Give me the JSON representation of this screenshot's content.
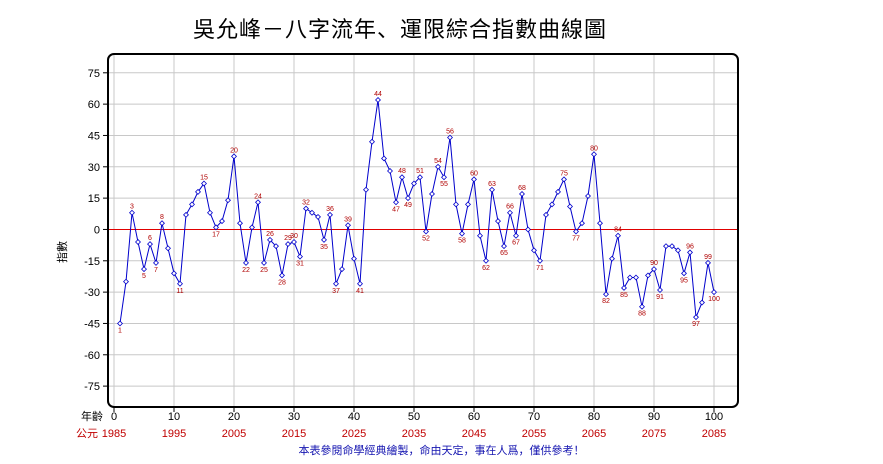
{
  "title": "吳允峰－八字流年、運限綜合指數曲線圖",
  "footer": "本表參閱命學經典繪製，命由天定，事在人爲，僅供參考！",
  "chart_data": {
    "type": "line",
    "ylabel": "指數",
    "xlabel": "年齡",
    "year_prefix": "公元",
    "xlim": [
      -1,
      104
    ],
    "ylim": [
      -85,
      84
    ],
    "x_ticks": [
      0,
      10,
      20,
      30,
      40,
      50,
      60,
      70,
      80,
      90,
      100
    ],
    "year_ticks": [
      "1985",
      "1995",
      "2005",
      "2015",
      "2025",
      "2035",
      "2045",
      "2055",
      "2065",
      "2075",
      "2085"
    ],
    "y_ticks": [
      75,
      60,
      45,
      30,
      15,
      0,
      -15,
      -30,
      -45,
      -60,
      -75
    ],
    "grid": true,
    "zero_line_color": "#e00000",
    "line_color": "#0000cc",
    "label_color": "#b00000",
    "series": [
      {
        "x": [
          1,
          2,
          3,
          4,
          5,
          6,
          7,
          8,
          9,
          10,
          11,
          12,
          13,
          14,
          15,
          16,
          17,
          18,
          19,
          20,
          21,
          22,
          23,
          24,
          25,
          26,
          27,
          28,
          29,
          30,
          31,
          32,
          33,
          34,
          35,
          36,
          37,
          38,
          39,
          40,
          41,
          42,
          43,
          44,
          45,
          46,
          47,
          48,
          49,
          50,
          51,
          52,
          53,
          54,
          55,
          56,
          57,
          58,
          59,
          60,
          61,
          62,
          63,
          64,
          65,
          66,
          67,
          68,
          69,
          70,
          71,
          72,
          73,
          74,
          75,
          76,
          77,
          78,
          79,
          80,
          81,
          82,
          83,
          84,
          85,
          86,
          87,
          88,
          89,
          90,
          91,
          92,
          93,
          94,
          95,
          96,
          97,
          98,
          99,
          100
        ],
        "y": [
          -45,
          -25,
          8,
          -6,
          -19,
          -7,
          -16,
          3,
          -9,
          -21,
          -26,
          7,
          12,
          18,
          22,
          8,
          1,
          4,
          14,
          35,
          3,
          -16,
          1,
          13,
          -16,
          -5,
          -8,
          -22,
          -7,
          -6,
          -13,
          10,
          8,
          6,
          -5,
          7,
          -26,
          -19,
          2,
          -14,
          -26,
          19,
          42,
          62,
          34,
          28,
          13,
          25,
          15,
          22,
          25,
          -1,
          17,
          30,
          25,
          44,
          12,
          -2,
          12,
          24,
          -3,
          -15,
          19,
          4,
          -8,
          8,
          -3,
          17,
          0,
          -10,
          -15,
          7,
          12,
          18,
          24,
          11,
          -1,
          3,
          16,
          36,
          3,
          -31,
          -14,
          -3,
          -28,
          -23,
          -23,
          -37,
          -22,
          -19,
          -29,
          -8,
          -8,
          -10,
          -21,
          -11,
          -42,
          -35,
          -16,
          -30
        ]
      }
    ],
    "point_labels": [
      {
        "x": 1,
        "text": "1",
        "pos": "below"
      },
      {
        "x": 3,
        "text": "3",
        "pos": "above"
      },
      {
        "x": 5,
        "text": "5",
        "pos": "below"
      },
      {
        "x": 6,
        "text": "6",
        "pos": "above"
      },
      {
        "x": 7,
        "text": "7",
        "pos": "below"
      },
      {
        "x": 8,
        "text": "8",
        "pos": "above"
      },
      {
        "x": 11,
        "text": "11",
        "pos": "below"
      },
      {
        "x": 15,
        "text": "15",
        "pos": "above"
      },
      {
        "x": 17,
        "text": "17",
        "pos": "below"
      },
      {
        "x": 20,
        "text": "20",
        "pos": "above"
      },
      {
        "x": 22,
        "text": "22",
        "pos": "below"
      },
      {
        "x": 24,
        "text": "24",
        "pos": "above"
      },
      {
        "x": 25,
        "text": "25",
        "pos": "below"
      },
      {
        "x": 26,
        "text": "26",
        "pos": "above"
      },
      {
        "x": 28,
        "text": "28",
        "pos": "below"
      },
      {
        "x": 29,
        "text": "29",
        "pos": "above"
      },
      {
        "x": 30,
        "text": "30",
        "pos": "above"
      },
      {
        "x": 31,
        "text": "31",
        "pos": "below"
      },
      {
        "x": 32,
        "text": "32",
        "pos": "above"
      },
      {
        "x": 35,
        "text": "35",
        "pos": "below"
      },
      {
        "x": 36,
        "text": "36",
        "pos": "above"
      },
      {
        "x": 37,
        "text": "37",
        "pos": "below"
      },
      {
        "x": 39,
        "text": "39",
        "pos": "above"
      },
      {
        "x": 41,
        "text": "41",
        "pos": "below"
      },
      {
        "x": 44,
        "text": "44",
        "pos": "above"
      },
      {
        "x": 47,
        "text": "47",
        "pos": "below"
      },
      {
        "x": 48,
        "text": "48",
        "pos": "above"
      },
      {
        "x": 49,
        "text": "49",
        "pos": "below"
      },
      {
        "x": 51,
        "text": "51",
        "pos": "above"
      },
      {
        "x": 52,
        "text": "52",
        "pos": "below"
      },
      {
        "x": 54,
        "text": "54",
        "pos": "above"
      },
      {
        "x": 55,
        "text": "55",
        "pos": "below"
      },
      {
        "x": 56,
        "text": "56",
        "pos": "above"
      },
      {
        "x": 58,
        "text": "58",
        "pos": "below"
      },
      {
        "x": 60,
        "text": "60",
        "pos": "above"
      },
      {
        "x": 62,
        "text": "62",
        "pos": "below"
      },
      {
        "x": 63,
        "text": "63",
        "pos": "above"
      },
      {
        "x": 65,
        "text": "65",
        "pos": "below"
      },
      {
        "x": 66,
        "text": "66",
        "pos": "above"
      },
      {
        "x": 67,
        "text": "67",
        "pos": "below"
      },
      {
        "x": 68,
        "text": "68",
        "pos": "above"
      },
      {
        "x": 71,
        "text": "71",
        "pos": "below"
      },
      {
        "x": 75,
        "text": "75",
        "pos": "above"
      },
      {
        "x": 77,
        "text": "77",
        "pos": "below"
      },
      {
        "x": 80,
        "text": "80",
        "pos": "above"
      },
      {
        "x": 82,
        "text": "82",
        "pos": "below"
      },
      {
        "x": 84,
        "text": "84",
        "pos": "above"
      },
      {
        "x": 85,
        "text": "85",
        "pos": "below"
      },
      {
        "x": 88,
        "text": "88",
        "pos": "below"
      },
      {
        "x": 90,
        "text": "90",
        "pos": "above"
      },
      {
        "x": 91,
        "text": "91",
        "pos": "below"
      },
      {
        "x": 95,
        "text": "95",
        "pos": "below"
      },
      {
        "x": 96,
        "text": "96",
        "pos": "above"
      },
      {
        "x": 97,
        "text": "97",
        "pos": "below"
      },
      {
        "x": 99,
        "text": "99",
        "pos": "above"
      },
      {
        "x": 100,
        "text": "100",
        "pos": "below"
      }
    ]
  }
}
